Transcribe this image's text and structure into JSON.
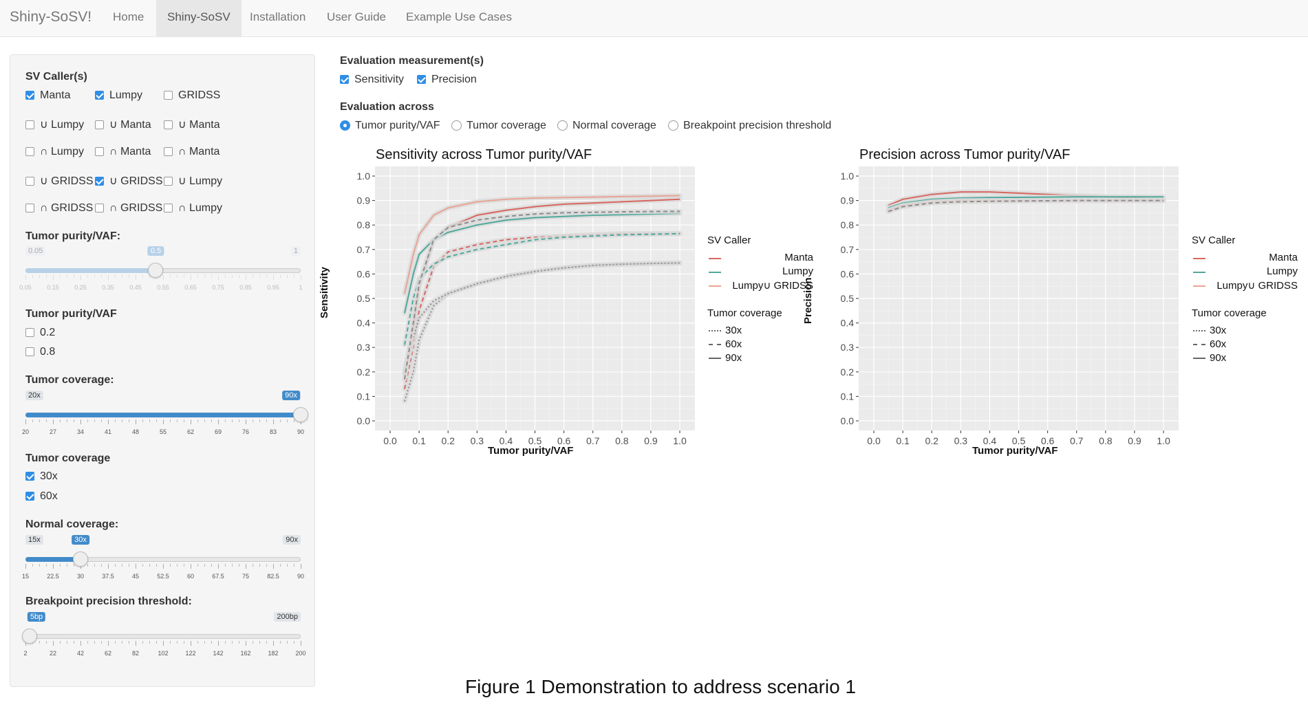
{
  "navbar": {
    "brand": "Shiny-SoSV!",
    "tabs": [
      {
        "label": "Home",
        "active": false
      },
      {
        "label": "Shiny-SoSV",
        "active": true
      },
      {
        "label": "Installation",
        "active": false
      },
      {
        "label": "User Guide",
        "active": false
      },
      {
        "label": "Example Use Cases",
        "active": false
      }
    ]
  },
  "sidebar": {
    "sv_caller_label": "SV Caller(s)",
    "sv_callers": [
      [
        {
          "label": "Manta",
          "checked": true
        },
        {
          "label": "Lumpy",
          "checked": true
        },
        {
          "label": "GRIDSS",
          "checked": false
        }
      ],
      [
        {
          "label": "∪ Lumpy",
          "checked": false
        },
        {
          "label": "∪ Manta",
          "checked": false
        },
        {
          "label": "∪ Manta",
          "checked": false
        }
      ],
      [
        {
          "label": "∩ Lumpy",
          "checked": false
        },
        {
          "label": "∩ Manta",
          "checked": false
        },
        {
          "label": "∩ Manta",
          "checked": false
        }
      ],
      [
        {
          "label": "∪ GRIDSS",
          "checked": false
        },
        {
          "label": "∪ GRIDSS",
          "checked": true
        },
        {
          "label": "∪ Lumpy",
          "checked": false
        }
      ],
      [
        {
          "label": "∩ GRIDSS",
          "checked": false
        },
        {
          "label": "∩ GRIDSS",
          "checked": false
        },
        {
          "label": "∩ Lumpy",
          "checked": false
        }
      ]
    ],
    "purity_slider": {
      "label": "Tumor purity/VAF:",
      "min": "0.05",
      "max": "1",
      "value": "0.5",
      "fraction": 0.4737,
      "ticks": [
        "0.05",
        "0.15",
        "0.25",
        "0.35",
        "0.45",
        "0.55",
        "0.65",
        "0.75",
        "0.85",
        "0.95",
        "1"
      ],
      "disabled": true
    },
    "purity_choice": {
      "label": "Tumor purity/VAF",
      "options": [
        {
          "label": "0.2",
          "checked": false
        },
        {
          "label": "0.8",
          "checked": false
        }
      ]
    },
    "tumor_cov_slider": {
      "label": "Tumor coverage:",
      "min": "20x",
      "max": "90x",
      "value": "90x",
      "fraction": 1.0,
      "ticks": [
        "20",
        "27",
        "34",
        "41",
        "48",
        "55",
        "62",
        "69",
        "76",
        "83",
        "90"
      ],
      "disabled": false
    },
    "tumor_cov_choice": {
      "label": "Tumor coverage",
      "options": [
        {
          "label": "30x",
          "checked": true
        },
        {
          "label": "60x",
          "checked": true
        }
      ]
    },
    "normal_cov_slider": {
      "label": "Normal coverage:",
      "min": "15x",
      "max": "90x",
      "value": "30x",
      "fraction": 0.2,
      "ticks": [
        "15",
        "22.5",
        "30",
        "37.5",
        "45",
        "52.5",
        "60",
        "67.5",
        "75",
        "82.5",
        "90"
      ],
      "disabled": false
    },
    "bp_slider": {
      "label": "Breakpoint precision threshold:",
      "min": "5bp",
      "max": "200bp",
      "value": "5bp",
      "fraction": 0.015,
      "ticks": [
        "2",
        "22",
        "42",
        "62",
        "82",
        "102",
        "122",
        "142",
        "162",
        "182",
        "200"
      ],
      "disabled": false,
      "hide_min": true
    }
  },
  "main": {
    "eval_label": "Evaluation measurement(s)",
    "eval_options": [
      {
        "label": "Sensitivity",
        "checked": true
      },
      {
        "label": "Precision",
        "checked": true
      }
    ],
    "across_label": "Evaluation across",
    "across_options": [
      {
        "label": "Tumor purity/VAF",
        "selected": true
      },
      {
        "label": "Tumor coverage",
        "selected": false
      },
      {
        "label": "Normal coverage",
        "selected": false
      },
      {
        "label": "Breakpoint precision threshold",
        "selected": false
      }
    ]
  },
  "colors": {
    "manta": "#d7665e",
    "lumpy": "#4ea89a",
    "union": "#e8a494",
    "grey_series": "#8c8c8c"
  },
  "chart_data": [
    {
      "type": "line",
      "title": "Sensitivity across Tumor purity/VAF",
      "xlabel": "Tumor purity/VAF",
      "ylabel": "Sensitivity",
      "xlim": [
        0,
        1
      ],
      "ylim": [
        0,
        1
      ],
      "x_ticks": [
        "0.0",
        "0.1",
        "0.2",
        "0.3",
        "0.4",
        "0.5",
        "0.6",
        "0.7",
        "0.8",
        "0.9",
        "1.0"
      ],
      "y_ticks": [
        "0.0",
        "0.1",
        "0.2",
        "0.3",
        "0.4",
        "0.5",
        "0.6",
        "0.7",
        "0.8",
        "0.9",
        "1.0"
      ],
      "x": [
        0.05,
        0.08,
        0.1,
        0.15,
        0.2,
        0.3,
        0.4,
        0.5,
        0.6,
        0.7,
        0.8,
        0.9,
        1.0
      ],
      "series": [
        {
          "caller": "Manta",
          "coverage": "90x",
          "color": "manta",
          "values": [
            0.2,
            0.38,
            0.55,
            0.74,
            0.79,
            0.84,
            0.86,
            0.875,
            0.885,
            0.89,
            0.895,
            0.9,
            0.905
          ]
        },
        {
          "caller": "Lumpy",
          "coverage": "90x",
          "color": "lumpy",
          "values": [
            0.44,
            0.6,
            0.68,
            0.74,
            0.77,
            0.8,
            0.82,
            0.83,
            0.835,
            0.84,
            0.842,
            0.845,
            0.848
          ]
        },
        {
          "caller": "Lumpy∪ GRIDSS",
          "coverage": "90x",
          "color": "union",
          "values": [
            0.52,
            0.68,
            0.76,
            0.84,
            0.87,
            0.895,
            0.905,
            0.91,
            0.912,
            0.914,
            0.916,
            0.918,
            0.92
          ]
        },
        {
          "caller": "Manta",
          "coverage": "60x",
          "color": "manta",
          "values": [
            0.13,
            0.3,
            0.45,
            0.63,
            0.69,
            0.72,
            0.74,
            0.75,
            0.755,
            0.76,
            0.765,
            0.765,
            0.765
          ]
        },
        {
          "caller": "Lumpy",
          "coverage": "60x",
          "color": "lumpy",
          "values": [
            0.31,
            0.5,
            0.58,
            0.64,
            0.67,
            0.7,
            0.72,
            0.74,
            0.75,
            0.755,
            0.76,
            0.762,
            0.765
          ]
        },
        {
          "caller": "Manta",
          "coverage": "30x",
          "color": "grey_series",
          "values": [
            0.08,
            0.2,
            0.33,
            0.47,
            0.52,
            0.56,
            0.59,
            0.61,
            0.625,
            0.635,
            0.64,
            0.643,
            0.645
          ]
        },
        {
          "caller": "Lumpy",
          "coverage": "30x",
          "color": "grey_series",
          "values": [
            0.19,
            0.34,
            0.42,
            0.49,
            0.52,
            0.56,
            0.59,
            0.61,
            0.625,
            0.635,
            0.64,
            0.643,
            0.645
          ]
        },
        {
          "caller": "Lumpy",
          "coverage": "60x",
          "color": "grey_series",
          "values": [
            0.17,
            0.4,
            0.56,
            0.74,
            0.79,
            0.82,
            0.835,
            0.845,
            0.85,
            0.852,
            0.854,
            0.855,
            0.856
          ]
        }
      ],
      "legend": {
        "caller_title": "SV Caller",
        "callers": [
          "Manta",
          "Lumpy",
          "Lumpy∪ GRIDSS"
        ],
        "coverage_title": "Tumor coverage",
        "coverages": [
          "30x",
          "60x",
          "90x"
        ]
      }
    },
    {
      "type": "line",
      "title": "Precision across Tumor purity/VAF",
      "xlabel": "Tumor purity/VAF",
      "ylabel": "Precision",
      "xlim": [
        0,
        1
      ],
      "ylim": [
        0,
        1
      ],
      "x_ticks": [
        "0.0",
        "0.1",
        "0.2",
        "0.3",
        "0.4",
        "0.5",
        "0.6",
        "0.7",
        "0.8",
        "0.9",
        "1.0"
      ],
      "y_ticks": [
        "0.0",
        "0.1",
        "0.2",
        "0.3",
        "0.4",
        "0.5",
        "0.6",
        "0.7",
        "0.8",
        "0.9",
        "1.0"
      ],
      "x": [
        0.05,
        0.1,
        0.2,
        0.3,
        0.4,
        0.5,
        0.6,
        0.7,
        0.8,
        0.9,
        1.0
      ],
      "series": [
        {
          "caller": "Manta",
          "coverage": "90x",
          "color": "manta",
          "values": [
            0.88,
            0.905,
            0.925,
            0.935,
            0.935,
            0.93,
            0.925,
            0.92,
            0.915,
            0.91,
            0.905
          ]
        },
        {
          "caller": "Lumpy",
          "coverage": "90x",
          "color": "lumpy",
          "values": [
            0.87,
            0.89,
            0.905,
            0.91,
            0.912,
            0.913,
            0.914,
            0.915,
            0.915,
            0.915,
            0.915
          ]
        },
        {
          "caller": "Lumpy∪ GRIDSS",
          "coverage": "90x",
          "color": "union",
          "values": [
            0.86,
            0.88,
            0.895,
            0.9,
            0.9,
            0.9,
            0.9,
            0.9,
            0.9,
            0.9,
            0.9
          ]
        },
        {
          "caller": "Lumpy∪ GRIDSS",
          "coverage": "60x",
          "color": "grey_series",
          "values": [
            0.855,
            0.875,
            0.89,
            0.895,
            0.897,
            0.898,
            0.899,
            0.9,
            0.9,
            0.9,
            0.9
          ]
        }
      ],
      "legend": {
        "caller_title": "SV Caller",
        "callers": [
          "Manta",
          "Lumpy",
          "Lumpy∪ GRIDSS"
        ],
        "coverage_title": "Tumor coverage",
        "coverages": [
          "30x",
          "60x",
          "90x"
        ]
      }
    }
  ],
  "caption": "Figure 1 Demonstration to address scenario 1"
}
